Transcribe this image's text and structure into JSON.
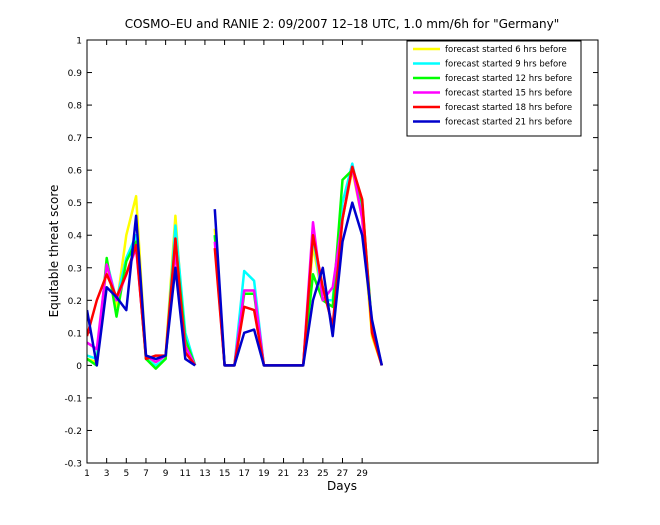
{
  "chart_data": {
    "type": "line",
    "title": "COSMO–EU and RANIE 2: 09/2007 12–18 UTC, 1.0 mm/6h for \"Germany\"",
    "xlabel": "Days",
    "ylabel": "Equitable threat score",
    "xlim": [
      1,
      53
    ],
    "ylim": [
      -0.3,
      1
    ],
    "x_ticks": [
      1,
      3,
      5,
      7,
      9,
      11,
      13,
      15,
      17,
      19,
      21,
      23,
      25,
      27,
      29
    ],
    "x_tick_labels": [
      "1",
      "3",
      "5",
      "7",
      "9",
      "11",
      "13",
      "15",
      "17",
      "19",
      "21",
      "23",
      "25",
      "27",
      "29"
    ],
    "y_ticks": [
      -0.3,
      -0.2,
      -0.1,
      0,
      0.1,
      0.2,
      0.3,
      0.4,
      0.5,
      0.6,
      0.7,
      0.8,
      0.9,
      1
    ],
    "y_tick_labels": [
      "-0.3",
      "-0.2",
      "-0.1",
      "0",
      "0.1",
      "0.2",
      "0.3",
      "0.4",
      "0.5",
      "0.6",
      "0.7",
      "0.8",
      "0.9",
      "1"
    ],
    "grid": false,
    "legend_position": "top-right",
    "x": [
      1,
      2,
      3,
      4,
      5,
      6,
      7,
      8,
      9,
      10,
      11,
      12,
      13,
      14,
      15,
      16,
      17,
      18,
      19,
      20,
      21,
      22,
      23,
      24,
      25,
      26,
      27,
      28,
      29,
      30,
      31
    ],
    "series": [
      {
        "name": "forecast started 6 hrs before",
        "color": "#ffff00",
        "values": [
          0.02,
          0.01,
          0.31,
          0.18,
          0.4,
          0.52,
          0.02,
          0.01,
          0.03,
          0.46,
          0.05,
          0.0,
          null,
          0.42,
          0.0,
          0.0,
          0.23,
          0.23,
          0.0,
          0.0,
          0.0,
          0.0,
          0.0,
          0.37,
          0.2,
          0.2,
          0.45,
          0.6,
          0.45,
          0.09,
          0.0
        ]
      },
      {
        "name": "forecast started 9 hrs before",
        "color": "#00ffff",
        "values": [
          0.03,
          0.02,
          0.32,
          0.2,
          0.33,
          0.4,
          0.02,
          0.0,
          0.02,
          0.43,
          0.1,
          0.0,
          null,
          0.4,
          0.0,
          0.0,
          0.29,
          0.26,
          0.0,
          0.0,
          0.0,
          0.0,
          0.0,
          0.4,
          0.2,
          0.2,
          0.5,
          0.62,
          0.48,
          0.12,
          0.0
        ]
      },
      {
        "name": "forecast started 12 hrs before",
        "color": "#00ff00",
        "values": [
          0.02,
          0.0,
          0.33,
          0.15,
          0.32,
          0.38,
          0.02,
          -0.01,
          0.02,
          0.38,
          0.08,
          0.0,
          null,
          0.4,
          0.0,
          0.0,
          0.22,
          0.22,
          0.0,
          0.0,
          0.0,
          0.0,
          0.0,
          0.28,
          0.2,
          0.18,
          0.57,
          0.6,
          0.5,
          0.12,
          0.0
        ]
      },
      {
        "name": "forecast started 15 hrs before",
        "color": "#ff00ff",
        "values": [
          0.07,
          0.05,
          0.31,
          0.2,
          0.28,
          0.36,
          0.03,
          0.01,
          0.03,
          0.35,
          0.06,
          0.0,
          null,
          0.38,
          0.0,
          0.0,
          0.23,
          0.23,
          0.0,
          0.0,
          0.0,
          0.0,
          0.0,
          0.44,
          0.2,
          0.24,
          0.45,
          0.61,
          0.45,
          0.12,
          0.0
        ]
      },
      {
        "name": "forecast started 18 hrs before",
        "color": "#ff0000",
        "values": [
          0.09,
          0.2,
          0.28,
          0.21,
          0.28,
          0.37,
          0.02,
          0.03,
          0.03,
          0.39,
          0.04,
          0.0,
          null,
          0.36,
          0.0,
          0.0,
          0.18,
          0.17,
          0.0,
          0.0,
          0.0,
          0.0,
          0.0,
          0.4,
          0.24,
          0.12,
          0.45,
          0.61,
          0.51,
          0.1,
          0.0
        ]
      },
      {
        "name": "forecast started 21 hrs before",
        "color": "#0000cc",
        "values": [
          0.17,
          0.0,
          0.24,
          0.21,
          0.17,
          0.46,
          0.03,
          0.02,
          0.03,
          0.3,
          0.02,
          0.0,
          null,
          0.48,
          0.0,
          0.0,
          0.1,
          0.11,
          0.0,
          0.0,
          0.0,
          0.0,
          0.0,
          0.2,
          0.3,
          0.09,
          0.38,
          0.5,
          0.4,
          0.14,
          0.0
        ]
      }
    ]
  }
}
